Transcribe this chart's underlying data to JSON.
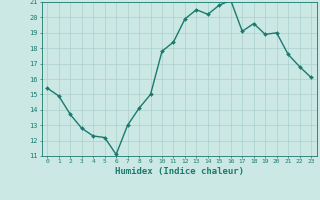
{
  "xlabel": "Humidex (Indice chaleur)",
  "ylabel": "",
  "x_values": [
    0,
    1,
    2,
    3,
    4,
    5,
    6,
    7,
    8,
    9,
    10,
    11,
    12,
    13,
    14,
    15,
    16,
    17,
    18,
    19,
    20,
    21,
    22,
    23
  ],
  "y_values": [
    15.4,
    14.9,
    13.7,
    12.8,
    12.3,
    12.2,
    11.1,
    13.0,
    14.1,
    15.0,
    17.8,
    18.4,
    19.9,
    20.5,
    20.2,
    20.8,
    21.1,
    19.1,
    19.6,
    18.9,
    19.0,
    17.6,
    16.8,
    16.1
  ],
  "ylim": [
    11,
    21
  ],
  "xlim_min": -0.5,
  "xlim_max": 23.5,
  "yticks": [
    11,
    12,
    13,
    14,
    15,
    16,
    17,
    18,
    19,
    20,
    21
  ],
  "xticks": [
    0,
    1,
    2,
    3,
    4,
    5,
    6,
    7,
    8,
    9,
    10,
    11,
    12,
    13,
    14,
    15,
    16,
    17,
    18,
    19,
    20,
    21,
    22,
    23
  ],
  "line_color": "#1a7a6e",
  "marker_color": "#1a7a6e",
  "bg_color": "#cce8e5",
  "grid_color": "#aad0cc",
  "axis_color": "#1a7a6e",
  "tick_label_color": "#1a7a6e",
  "xlabel_color": "#1a7a6e",
  "marker": "D",
  "marker_size": 2,
  "line_width": 1.0
}
